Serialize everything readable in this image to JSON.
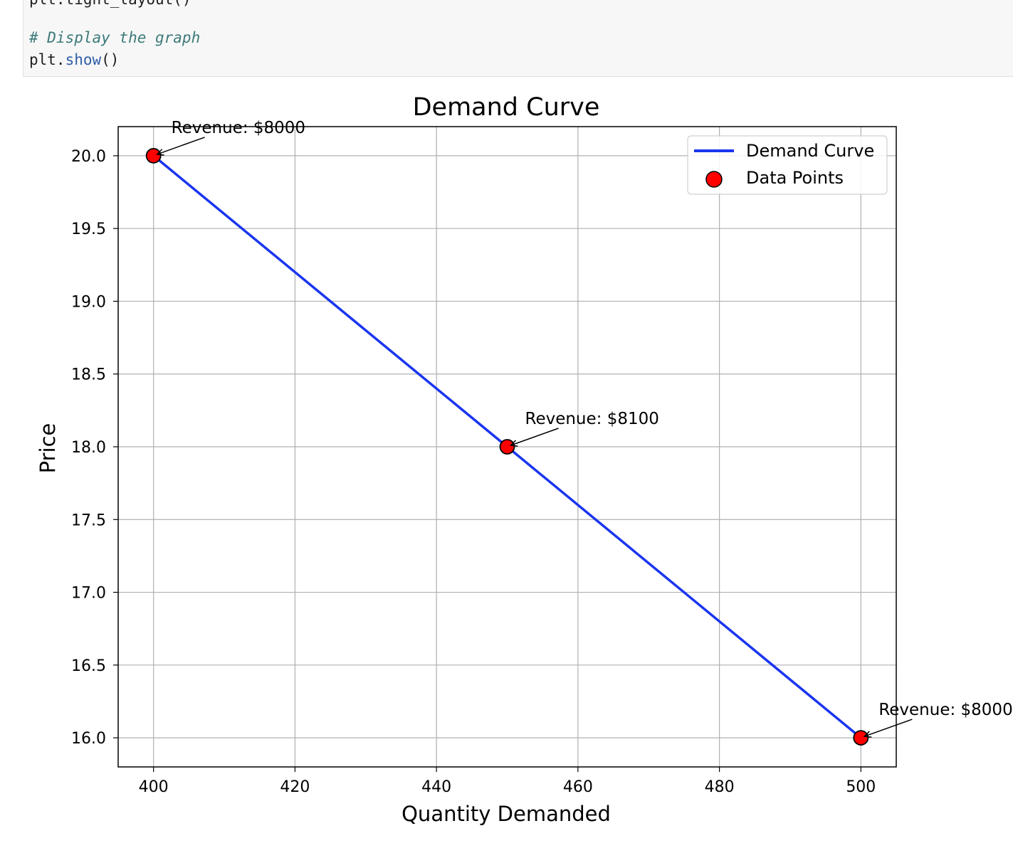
{
  "code": {
    "partial_line": "plt.tight_layout()",
    "comment": "# Display the graph",
    "show_object": "plt.",
    "show_fn": "show",
    "show_parens": "()"
  },
  "chart_data": {
    "type": "line",
    "title": "Demand Curve",
    "xlabel": "Quantity Demanded",
    "ylabel": "Price",
    "xlim": [
      395,
      505
    ],
    "ylim": [
      15.8,
      20.2
    ],
    "x_ticks": [
      "400",
      "420",
      "440",
      "460",
      "480",
      "500"
    ],
    "y_ticks": [
      "16.0",
      "16.5",
      "17.0",
      "17.5",
      "18.0",
      "18.5",
      "19.0",
      "19.5",
      "20.0"
    ],
    "grid": true,
    "legend_position": "top-right",
    "series": [
      {
        "name": "Demand Curve",
        "type": "line",
        "color": "#1a35f0",
        "x": [
          400,
          450,
          500
        ],
        "y": [
          20,
          18,
          16
        ]
      },
      {
        "name": "Data Points",
        "type": "scatter",
        "color": "#ff0000",
        "x": [
          400,
          450,
          500
        ],
        "y": [
          20,
          18,
          16
        ]
      }
    ],
    "annotations": [
      {
        "text": "Revenue: $8000",
        "x": 400,
        "y": 20
      },
      {
        "text": "Revenue: $8100",
        "x": 450,
        "y": 18
      },
      {
        "text": "Revenue: $8000",
        "x": 500,
        "y": 16
      }
    ]
  }
}
